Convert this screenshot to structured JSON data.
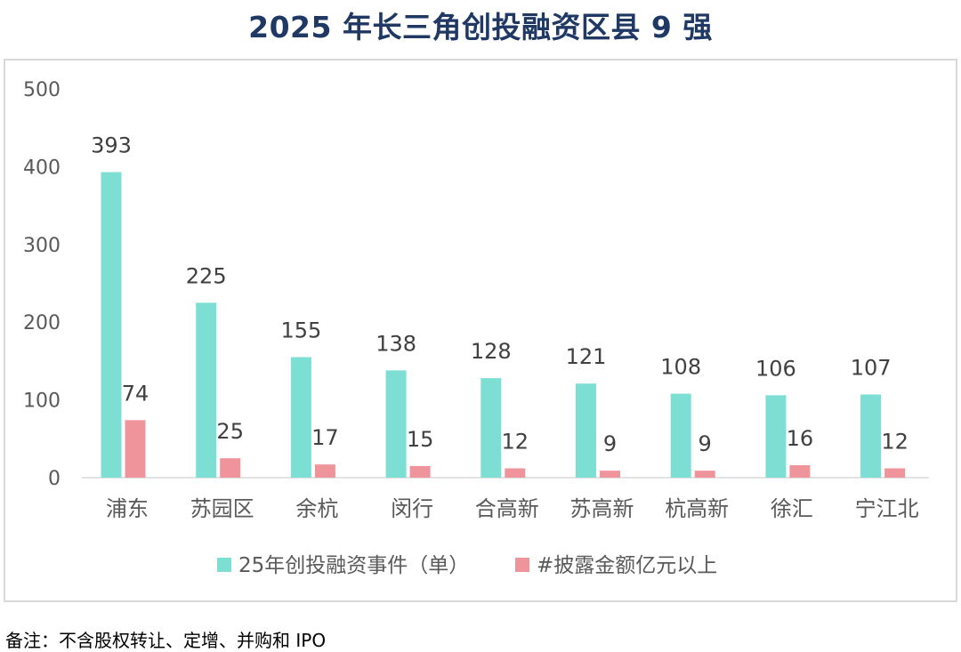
{
  "chart_data": {
    "type": "bar",
    "title": "2025 年长三角创投融资区县 9 强",
    "categories": [
      "浦东",
      "苏园区",
      "余杭",
      "闵行",
      "合高新",
      "苏高新",
      "杭高新",
      "徐汇",
      "宁江北"
    ],
    "series": [
      {
        "name": "25年创投融资事件（单）",
        "color": "#7dded4",
        "values": [
          393,
          225,
          155,
          138,
          128,
          121,
          108,
          106,
          107
        ]
      },
      {
        "name": "#披露金额亿元以上",
        "color": "#f0949b",
        "values": [
          74,
          25,
          17,
          15,
          12,
          9,
          9,
          16,
          12
        ]
      }
    ],
    "yticks": [
      "500",
      "400",
      "300",
      "200",
      "100",
      "0"
    ],
    "ylim": [
      0,
      500
    ],
    "legend": "bottom",
    "grid": false
  },
  "footnote": "备注：不含股权转让、定增、并购和 IPO"
}
